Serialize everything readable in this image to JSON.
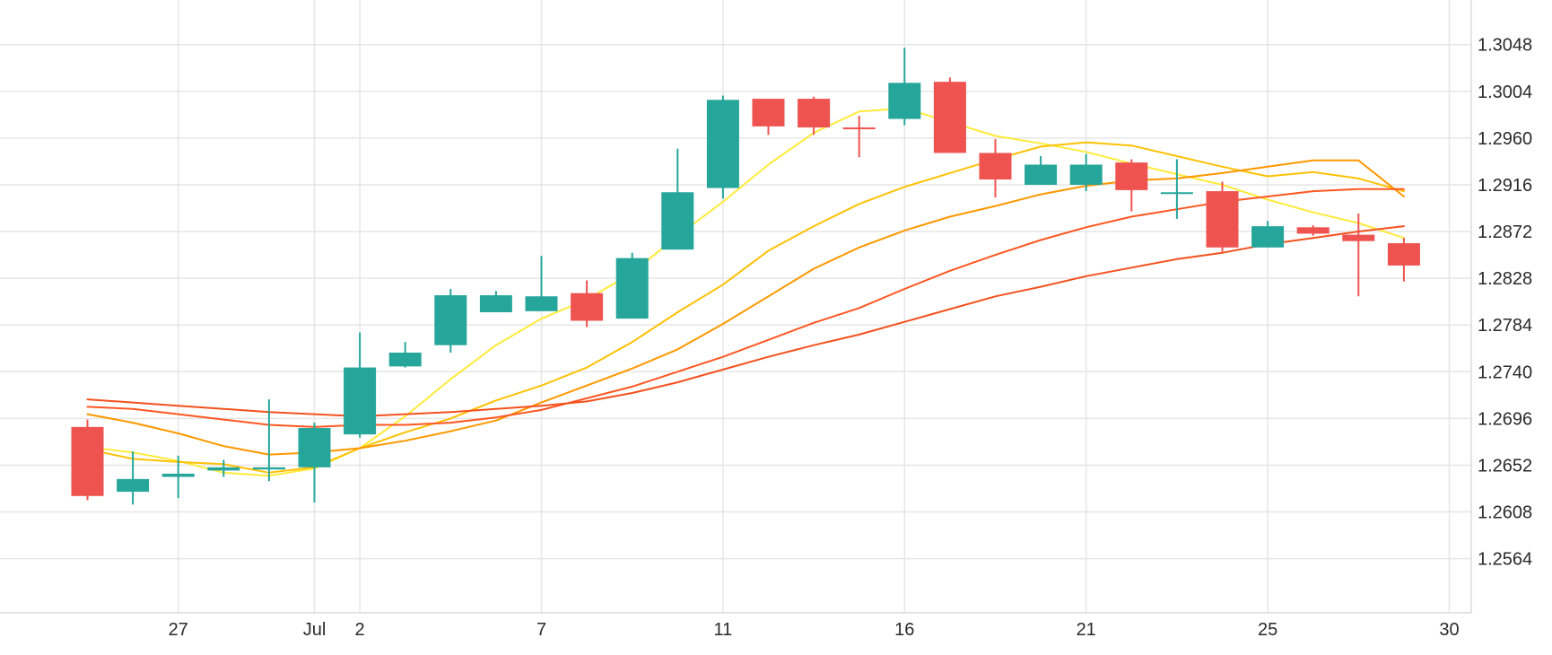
{
  "chart_data": {
    "type": "candlestick",
    "grid": true,
    "y_axis": {
      "position": "right",
      "ylim": [
        1.2513,
        1.309
      ],
      "ticks": [
        "1.2564",
        "1.2608",
        "1.2652",
        "1.2696",
        "1.2740",
        "1.2784",
        "1.2828",
        "1.2872",
        "1.2916",
        "1.2960",
        "1.3004",
        "1.3048"
      ]
    },
    "x_axis": {
      "ticks": [
        {
          "label": "27",
          "x": 1.0
        },
        {
          "label": "Jul",
          "x": 4.0
        },
        {
          "label": "2",
          "x": 5.0
        },
        {
          "label": "7",
          "x": 9.0
        },
        {
          "label": "11",
          "x": 13.0
        },
        {
          "label": "16",
          "x": 17.0
        },
        {
          "label": "21",
          "x": 21.0
        },
        {
          "label": "25",
          "x": 25.0
        },
        {
          "label": "30",
          "x": 29.0
        }
      ]
    },
    "colors": {
      "up": "#26a69a",
      "down": "#ef5350"
    },
    "candles": [
      {
        "o": 1.2688,
        "h": 1.2695,
        "l": 1.2619,
        "c": 1.2623
      },
      {
        "o": 1.2627,
        "h": 1.2665,
        "l": 1.2615,
        "c": 1.2639
      },
      {
        "o": 1.2641,
        "h": 1.2661,
        "l": 1.2621,
        "c": 1.2644
      },
      {
        "o": 1.2647,
        "h": 1.2657,
        "l": 1.2641,
        "c": 1.265
      },
      {
        "o": 1.2648,
        "h": 1.2714,
        "l": 1.2637,
        "c": 1.265
      },
      {
        "o": 1.265,
        "h": 1.2692,
        "l": 1.2617,
        "c": 1.2687
      },
      {
        "o": 1.2681,
        "h": 1.2777,
        "l": 1.2678,
        "c": 1.2744
      },
      {
        "o": 1.2745,
        "h": 1.2768,
        "l": 1.2744,
        "c": 1.2758
      },
      {
        "o": 1.2765,
        "h": 1.2818,
        "l": 1.2758,
        "c": 1.2812
      },
      {
        "o": 1.2796,
        "h": 1.2816,
        "l": 1.2796,
        "c": 1.2812
      },
      {
        "o": 1.2797,
        "h": 1.2849,
        "l": 1.2797,
        "c": 1.2811
      },
      {
        "o": 1.2814,
        "h": 1.2826,
        "l": 1.2782,
        "c": 1.2788
      },
      {
        "o": 1.279,
        "h": 1.2852,
        "l": 1.279,
        "c": 1.2847
      },
      {
        "o": 1.2855,
        "h": 1.295,
        "l": 1.2855,
        "c": 1.2909
      },
      {
        "o": 1.2913,
        "h": 1.3,
        "l": 1.2903,
        "c": 1.2996
      },
      {
        "o": 1.2997,
        "h": 1.2997,
        "l": 1.2963,
        "c": 1.2971
      },
      {
        "o": 1.2997,
        "h": 1.2999,
        "l": 1.2963,
        "c": 1.297
      },
      {
        "o": 1.297,
        "h": 1.2981,
        "l": 1.2942,
        "c": 1.2969
      },
      {
        "o": 1.2978,
        "h": 1.3045,
        "l": 1.2972,
        "c": 1.3012
      },
      {
        "o": 1.3013,
        "h": 1.3017,
        "l": 1.2946,
        "c": 1.2946
      },
      {
        "o": 1.2946,
        "h": 1.2959,
        "l": 1.2904,
        "c": 1.2921
      },
      {
        "o": 1.2916,
        "h": 1.2943,
        "l": 1.2916,
        "c": 1.2935
      },
      {
        "o": 1.2916,
        "h": 1.2945,
        "l": 1.291,
        "c": 1.2935
      },
      {
        "o": 1.2937,
        "h": 1.294,
        "l": 1.2891,
        "c": 1.2911
      },
      {
        "o": 1.2909,
        "h": 1.294,
        "l": 1.2884,
        "c": 1.2909
      },
      {
        "o": 1.291,
        "h": 1.2919,
        "l": 1.2853,
        "c": 1.2857
      },
      {
        "o": 1.2857,
        "h": 1.2882,
        "l": 1.2857,
        "c": 1.2877
      },
      {
        "o": 1.2876,
        "h": 1.2878,
        "l": 1.2868,
        "c": 1.287
      },
      {
        "o": 1.2869,
        "h": 1.2889,
        "l": 1.2811,
        "c": 1.2863
      },
      {
        "o": 1.2861,
        "h": 1.2866,
        "l": 1.2825,
        "c": 1.284
      }
    ],
    "moving_averages": [
      {
        "color": "#ffeb3b",
        "values": [
          1.2669,
          1.2664,
          1.2656,
          1.2645,
          1.2642,
          1.2649,
          1.2668,
          1.2698,
          1.2733,
          1.2765,
          1.279,
          1.2808,
          1.2833,
          1.2868,
          1.29,
          1.2935,
          1.2965,
          1.2985,
          1.2988,
          1.2975,
          1.2962,
          1.2955,
          1.2947,
          1.2936,
          1.2926,
          1.2916,
          1.2902,
          1.289,
          1.288,
          1.2866
        ]
      },
      {
        "color": "#ffc107",
        "values": [
          1.2667,
          1.2658,
          1.2655,
          1.2653,
          1.2645,
          1.265,
          1.2668,
          1.2683,
          1.2696,
          1.2713,
          1.2727,
          1.2744,
          1.2768,
          1.2796,
          1.2822,
          1.2854,
          1.2877,
          1.2898,
          1.2914,
          1.2927,
          1.294,
          1.2952,
          1.2956,
          1.2953,
          1.2943,
          1.2933,
          1.2924,
          1.2928,
          1.2922,
          1.291
        ]
      },
      {
        "color": "#ff9800",
        "values": [
          1.27,
          1.2692,
          1.2682,
          1.267,
          1.2662,
          1.2664,
          1.2668,
          1.2675,
          1.2684,
          1.2694,
          1.2711,
          1.2727,
          1.2743,
          1.2761,
          1.2785,
          1.2811,
          1.2837,
          1.2857,
          1.2873,
          1.2886,
          1.2896,
          1.2907,
          1.2915,
          1.292,
          1.2922,
          1.2927,
          1.2933,
          1.2939,
          1.2939,
          1.2905
        ]
      },
      {
        "color": "#ff5722",
        "values": [
          1.2707,
          1.2705,
          1.27,
          1.2695,
          1.269,
          1.2688,
          1.269,
          1.269,
          1.2692,
          1.2697,
          1.2704,
          1.2715,
          1.2726,
          1.274,
          1.2754,
          1.277,
          1.2786,
          1.28,
          1.2818,
          1.2835,
          1.285,
          1.2864,
          1.2876,
          1.2886,
          1.2893,
          1.29,
          1.2905,
          1.291,
          1.2912,
          1.2912
        ]
      },
      {
        "color": "#f4511e",
        "values": [
          1.2714,
          1.2711,
          1.2708,
          1.2705,
          1.2702,
          1.27,
          1.2698,
          1.27,
          1.2702,
          1.2705,
          1.2708,
          1.2712,
          1.272,
          1.273,
          1.2742,
          1.2754,
          1.2765,
          1.2775,
          1.2787,
          1.2799,
          1.2811,
          1.282,
          1.283,
          1.2838,
          1.2846,
          1.2852,
          1.286,
          1.2866,
          1.2872,
          1.2877
        ]
      }
    ]
  }
}
